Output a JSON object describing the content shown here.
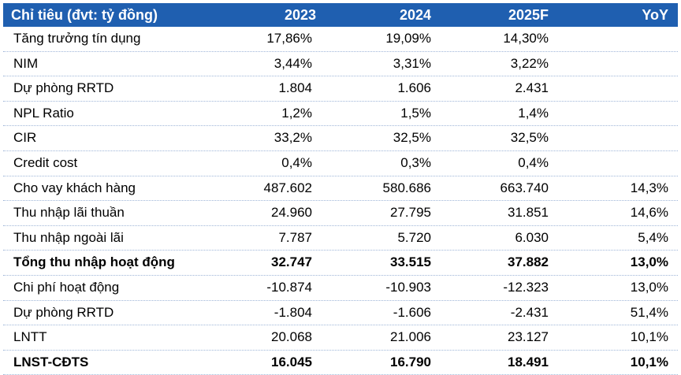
{
  "header": {
    "label": "Chỉ tiêu (đvt: tỷ đồng)",
    "col1": "2023",
    "col2": "2024",
    "col3": "2025F",
    "col4": "YoY"
  },
  "rows": [
    {
      "label": "Tăng trưởng tín dụng",
      "v1": "17,86%",
      "v2": "19,09%",
      "v3": "14,30%",
      "v4": ""
    },
    {
      "label": "NIM",
      "v1": "3,44%",
      "v2": "3,31%",
      "v3": "3,22%",
      "v4": ""
    },
    {
      "label": "Dự phòng RRTD",
      "v1": "1.804",
      "v2": "1.606",
      "v3": "2.431",
      "v4": ""
    },
    {
      "label": "NPL Ratio",
      "v1": "1,2%",
      "v2": "1,5%",
      "v3": "1,4%",
      "v4": ""
    },
    {
      "label": "CIR",
      "v1": "33,2%",
      "v2": "32,5%",
      "v3": "32,5%",
      "v4": ""
    },
    {
      "label": "Credit cost",
      "v1": "0,4%",
      "v2": "0,3%",
      "v3": "0,4%",
      "v4": ""
    },
    {
      "label": "Cho vay khách hàng",
      "v1": "487.602",
      "v2": "580.686",
      "v3": "663.740",
      "v4": "14,3%"
    },
    {
      "label": "Thu nhập lãi thuần",
      "v1": "24.960",
      "v2": "27.795",
      "v3": "31.851",
      "v4": "14,6%"
    },
    {
      "label": "Thu nhập ngoài lãi",
      "v1": "7.787",
      "v2": "5.720",
      "v3": "6.030",
      "v4": "5,4%"
    },
    {
      "label": "Tổng thu nhập hoạt động",
      "v1": "32.747",
      "v2": "33.515",
      "v3": "37.882",
      "v4": "13,0%"
    },
    {
      "label": "Chi phí hoạt động",
      "v1": "-10.874",
      "v2": "-10.903",
      "v3": "-12.323",
      "v4": "13,0%"
    },
    {
      "label": "Dự phòng RRTD",
      "v1": "-1.804",
      "v2": "-1.606",
      "v3": "-2.431",
      "v4": "51,4%"
    },
    {
      "label": "LNTT",
      "v1": "20.068",
      "v2": "21.006",
      "v3": "23.127",
      "v4": "10,1%"
    },
    {
      "label": "LNST-CĐTS",
      "v1": "16.045",
      "v2": "16.790",
      "v3": "18.491",
      "v4": "10,1%"
    }
  ]
}
